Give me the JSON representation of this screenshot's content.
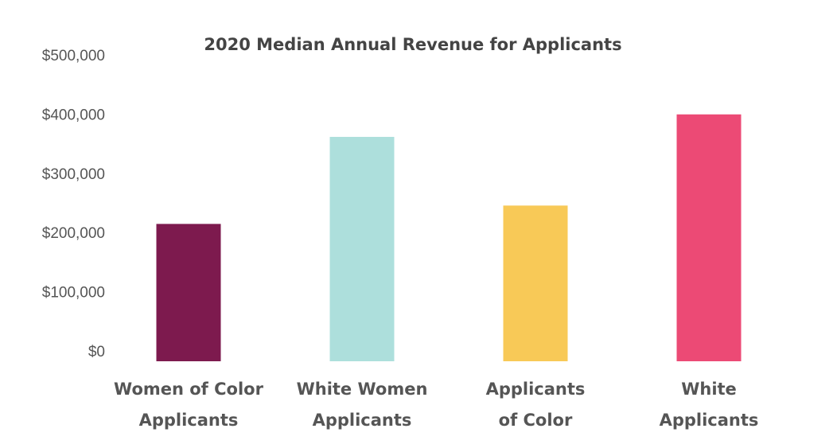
{
  "chart_data": {
    "type": "bar",
    "title": "2020 Median Annual Revenue for Applicants",
    "categories": [
      [
        "Women of Color",
        "Applicants"
      ],
      [
        "White Women",
        "Applicants"
      ],
      [
        "Applicants",
        "of Color"
      ],
      [
        "White",
        "Applicants"
      ]
    ],
    "values": [
      232000,
      379000,
      263000,
      417000
    ],
    "colors": [
      "#7d1a4e",
      "#addfdc",
      "#f8c957",
      "#ec4a75"
    ],
    "ylim": [
      0,
      500000
    ],
    "yticks": [
      0,
      100000,
      200000,
      300000,
      400000,
      500000
    ],
    "ytick_labels": [
      "$0",
      "$100,000",
      "$200,000",
      "$300,000",
      "$400,000",
      "$500,000"
    ],
    "xlabel": "",
    "ylabel": "",
    "grid": false,
    "legend": "none"
  }
}
